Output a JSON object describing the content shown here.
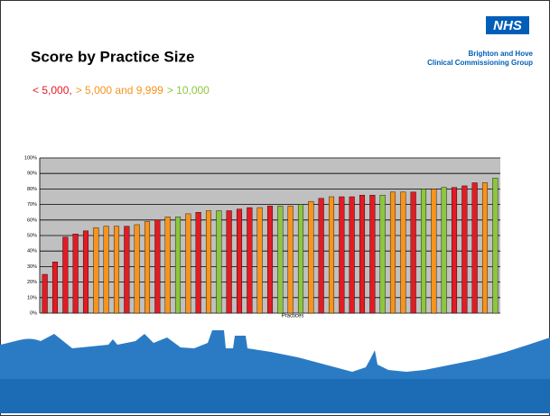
{
  "logo": "NHS",
  "org": [
    "Brighton and Hove",
    "Clinical Commissioning Group"
  ],
  "chart_data": {
    "type": "bar",
    "title": "Score by Practice Size",
    "legend": [
      {
        "name": "< 5,000,",
        "color": "#e31b23"
      },
      {
        "name": "> 5,000 and 9,999",
        "color": "#f7941d"
      },
      {
        "name": "> 10,000",
        "color": "#8dc63f"
      }
    ],
    "x_label": "Practices",
    "values": [
      25,
      33,
      49,
      51,
      53,
      55,
      56,
      56,
      56,
      57,
      59,
      60,
      62,
      62,
      64,
      65,
      66,
      66,
      66,
      67,
      68,
      68,
      69,
      69,
      69,
      70,
      72,
      74,
      75,
      75,
      75,
      76,
      76,
      76,
      78,
      78,
      78,
      80,
      80,
      81,
      81,
      82,
      84,
      84,
      87
    ],
    "bar_colors": [
      "#e31b23",
      "#e31b23",
      "#e31b23",
      "#e31b23",
      "#e31b23",
      "#f7941d",
      "#f7941d",
      "#f7941d",
      "#e31b23",
      "#f7941d",
      "#f7941d",
      "#e31b23",
      "#f7941d",
      "#8dc63f",
      "#f7941d",
      "#e31b23",
      "#f7941d",
      "#8dc63f",
      "#e31b23",
      "#e31b23",
      "#e31b23",
      "#f7941d",
      "#e31b23",
      "#8dc63f",
      "#f7941d",
      "#8dc63f",
      "#f7941d",
      "#e31b23",
      "#f7941d",
      "#e31b23",
      "#e31b23",
      "#e31b23",
      "#e31b23",
      "#8dc63f",
      "#f7941d",
      "#f7941d",
      "#e31b23",
      "#8dc63f",
      "#f7941d",
      "#8dc63f",
      "#e31b23",
      "#e31b23",
      "#e31b23",
      "#f7941d",
      "#8dc63f"
    ],
    "ylim": [
      0,
      100
    ],
    "yticks": [
      {
        "value": 0,
        "label": "0%"
      },
      {
        "value": 10,
        "label": "10%"
      },
      {
        "value": 20,
        "label": "20%"
      },
      {
        "value": 30,
        "label": "30%"
      },
      {
        "value": 40,
        "label": "40%"
      },
      {
        "value": 50,
        "label": "50%"
      },
      {
        "value": 60,
        "label": "60%"
      },
      {
        "value": 70,
        "label": "70%"
      },
      {
        "value": 80,
        "label": "80%"
      },
      {
        "value": 90,
        "label": "90%"
      },
      {
        "value": 100,
        "label": "100%"
      }
    ],
    "grid": true,
    "background": "#c0c0c0"
  }
}
